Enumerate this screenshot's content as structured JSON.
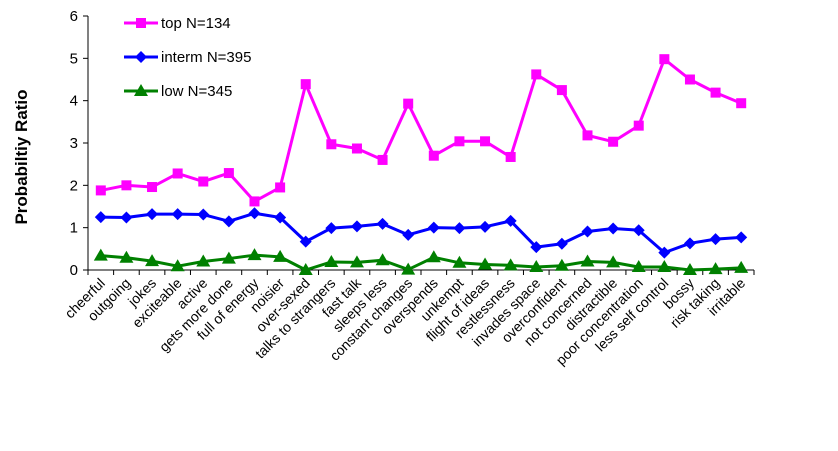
{
  "chart_data": {
    "type": "line",
    "xlabel": "",
    "ylabel": "Probabiltiy Ratio",
    "ylim": [
      0,
      6
    ],
    "yticks": [
      0,
      1,
      2,
      3,
      4,
      5,
      6
    ],
    "grid": false,
    "legend_position": "top-left",
    "categories": [
      "cheerful",
      "outgoing",
      "jokes",
      "exciteable",
      "active",
      "gets more done",
      "full of energy",
      "noisier",
      "over-sexed",
      "talks to strangers",
      "fast talk",
      "sleeps less",
      "constant changes",
      "overspends",
      "unkempt",
      "flight of ideas",
      "restlessness",
      "invades space",
      "overconfident",
      "not concerned",
      "distractible",
      "poor concentration",
      "less self control",
      "bossy",
      "risk taking",
      "irritable"
    ],
    "series": [
      {
        "name": "top N=134",
        "color": "#ff00ff",
        "marker": "square",
        "values": [
          1.88,
          2.0,
          1.96,
          2.28,
          2.09,
          2.29,
          1.62,
          1.95,
          4.39,
          2.97,
          2.87,
          2.6,
          3.93,
          2.7,
          3.04,
          3.04,
          2.67,
          4.62,
          4.25,
          3.18,
          3.03,
          3.41,
          4.98,
          4.5,
          4.19,
          3.94
        ]
      },
      {
        "name": "interm N=395",
        "color": "#0000ff",
        "marker": "diamond",
        "values": [
          1.25,
          1.24,
          1.32,
          1.32,
          1.31,
          1.15,
          1.34,
          1.24,
          0.67,
          0.99,
          1.03,
          1.09,
          0.83,
          1.0,
          0.99,
          1.02,
          1.16,
          0.54,
          0.62,
          0.91,
          0.98,
          0.94,
          0.41,
          0.63,
          0.73,
          0.77
        ]
      },
      {
        "name": "low N=345",
        "color": "#008000",
        "marker": "triangle",
        "values": [
          0.34,
          0.29,
          0.21,
          0.09,
          0.2,
          0.27,
          0.35,
          0.31,
          0.0,
          0.19,
          0.18,
          0.23,
          0.01,
          0.3,
          0.17,
          0.13,
          0.11,
          0.07,
          0.1,
          0.2,
          0.18,
          0.07,
          0.07,
          0.0,
          0.02,
          0.05
        ]
      }
    ]
  }
}
